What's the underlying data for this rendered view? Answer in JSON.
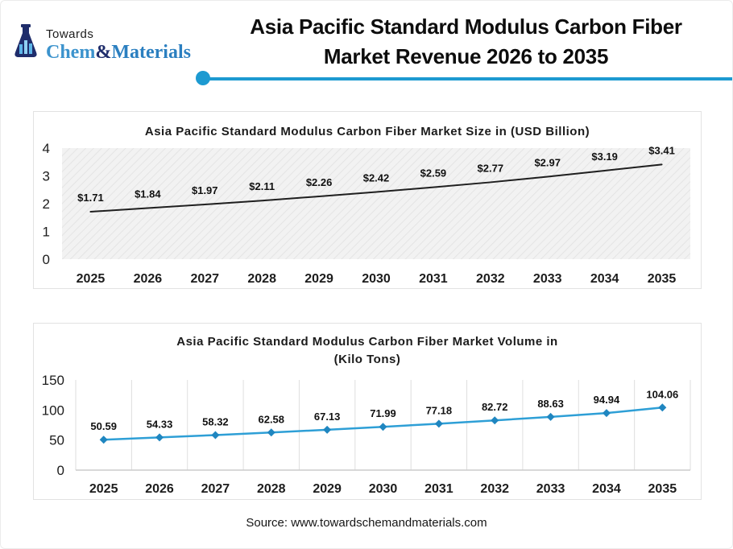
{
  "page": {
    "accent_color": "#1d9ad1",
    "background": "#ffffff"
  },
  "logo": {
    "icon": "flask-icon",
    "top_text": "Towards",
    "brand_chem": "Chem",
    "brand_amp": "&",
    "brand_materials": "Materials",
    "colors": {
      "flask_navy": "#1f2d6b",
      "flask_liquid": "#5db6e8",
      "chem_blue": "#3c93cd",
      "materials_blue": "#2b7fc0"
    }
  },
  "header": {
    "title_line1": "Asia Pacific Standard Modulus Carbon Fiber",
    "title_line2": "Market Revenue 2026 to 2035"
  },
  "footer": {
    "source": "Source: www.towardschemandmaterials.com"
  },
  "chart_data": [
    {
      "type": "line",
      "title": "Asia Pacific Standard Modulus Carbon Fiber Market  Size in (USD Billion)",
      "categories": [
        "2025",
        "2026",
        "2027",
        "2028",
        "2029",
        "2030",
        "2031",
        "2032",
        "2033",
        "2034",
        "2035"
      ],
      "values": [
        1.71,
        1.84,
        1.97,
        2.11,
        2.26,
        2.42,
        2.59,
        2.77,
        2.97,
        3.19,
        3.41
      ],
      "labels": [
        "$1.71",
        "$1.84",
        "$1.97",
        "$2.11",
        "$2.26",
        "$2.42",
        "$2.59",
        "$2.77",
        "$2.97",
        "$3.19",
        "$3.41"
      ],
      "xlabel": "",
      "ylabel": "",
      "ylim": [
        0,
        4
      ],
      "yticks": [
        0,
        1,
        2,
        3,
        4
      ],
      "grid": "none",
      "plot_bg": "hatch",
      "legend": "none",
      "line_color": "#1f1f1f",
      "line_width": 2,
      "marker": "none"
    },
    {
      "type": "line",
      "title_line1": "Asia Pacific Standard Modulus Carbon Fiber Market  Volume in",
      "title_line2": "(Kilo Tons)",
      "categories": [
        "2025",
        "2026",
        "2027",
        "2028",
        "2029",
        "2030",
        "2031",
        "2032",
        "2033",
        "2034",
        "2035"
      ],
      "values": [
        50.59,
        54.33,
        58.32,
        62.58,
        67.13,
        71.99,
        77.18,
        82.72,
        88.63,
        94.94,
        104.06
      ],
      "labels": [
        "50.59",
        "54.33",
        "58.32",
        "62.58",
        "67.13",
        "71.99",
        "77.18",
        "82.72",
        "88.63",
        "94.94",
        "104.06"
      ],
      "xlabel": "",
      "ylabel": "",
      "ylim": [
        0,
        150
      ],
      "yticks": [
        0,
        50,
        100,
        150
      ],
      "grid": "vertical",
      "plot_bg": "white",
      "legend": "none",
      "line_color": "#2e9fd6",
      "line_width": 2.5,
      "marker": "diamond",
      "marker_color": "#1f86c0"
    }
  ]
}
